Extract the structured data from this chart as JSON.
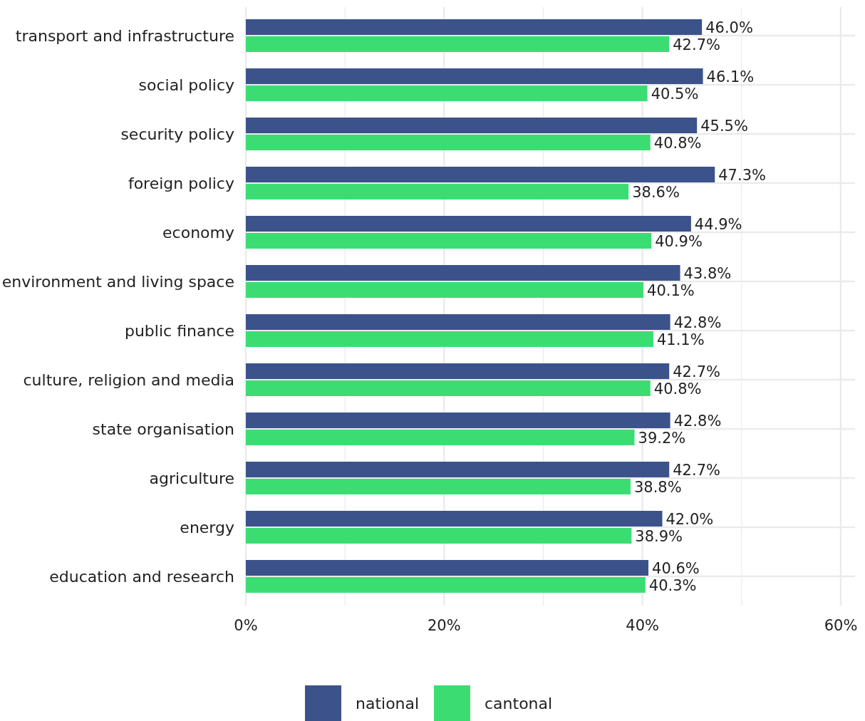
{
  "chart_data": {
    "type": "bar",
    "orientation": "horizontal",
    "categories": [
      "transport and infrastructure",
      "social policy",
      "security policy",
      "foreign policy",
      "economy",
      "environment and living space",
      "public finance",
      "culture, religion and media",
      "state organisation",
      "agriculture",
      "energy",
      "education and research"
    ],
    "series": [
      {
        "name": "national",
        "color": "#3b528b",
        "values": [
          46.0,
          46.1,
          45.5,
          47.3,
          44.9,
          43.8,
          42.8,
          42.7,
          42.8,
          42.7,
          42.0,
          40.6
        ],
        "value_labels": [
          "46.0%",
          "46.1%",
          "45.5%",
          "47.3%",
          "44.9%",
          "43.8%",
          "42.8%",
          "42.7%",
          "42.8%",
          "42.7%",
          "42.0%",
          "40.6%"
        ]
      },
      {
        "name": "cantonal",
        "color": "#3bdd73",
        "values": [
          42.7,
          40.5,
          40.8,
          38.6,
          40.9,
          40.1,
          41.1,
          40.8,
          39.2,
          38.8,
          38.9,
          40.3
        ],
        "value_labels": [
          "42.7%",
          "40.5%",
          "40.8%",
          "38.6%",
          "40.9%",
          "40.1%",
          "41.1%",
          "40.8%",
          "39.2%",
          "38.8%",
          "38.9%",
          "40.3%"
        ]
      }
    ],
    "xlim": [
      0,
      60
    ],
    "xticks": [
      {
        "value": 0,
        "label": "0%"
      },
      {
        "value": 10,
        "label": null
      },
      {
        "value": 20,
        "label": "20%"
      },
      {
        "value": 30,
        "label": null
      },
      {
        "value": 40,
        "label": "40%"
      },
      {
        "value": 50,
        "label": null
      },
      {
        "value": 60,
        "label": "60%"
      }
    ],
    "grid": true,
    "legend": "bottom"
  }
}
